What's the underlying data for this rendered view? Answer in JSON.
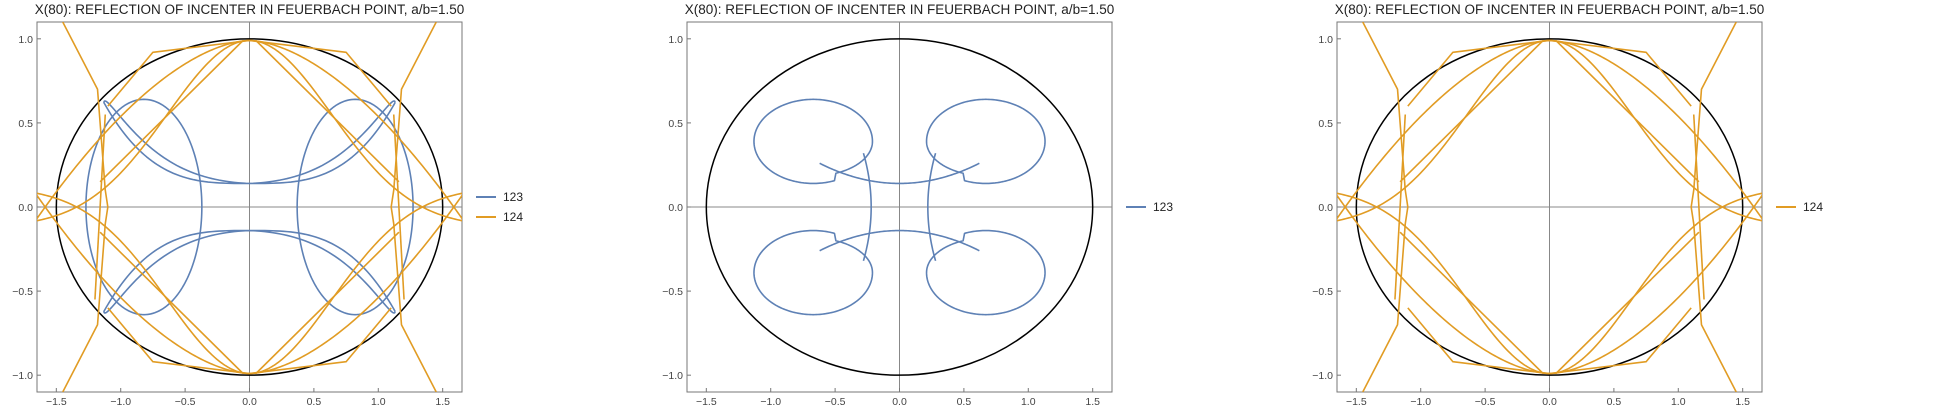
{
  "chart_data": [
    {
      "type": "line",
      "title": "X(80): REFLECTION OF INCENTER IN FEUERBACH POINT, a/b=1.50",
      "xlim": [
        -1.65,
        1.65
      ],
      "ylim": [
        -1.1,
        1.1
      ],
      "xticks": [
        -1.5,
        -1.0,
        -0.5,
        0.0,
        0.5,
        1.0,
        1.5
      ],
      "xtick_labels": [
        "−1.5",
        "−1.0",
        "−0.5",
        "0.0",
        "0.5",
        "1.0",
        "1.5"
      ],
      "yticks": [
        1.0,
        0.5,
        0.0,
        -0.5,
        -1.0
      ],
      "ytick_labels": [
        "1.0",
        "0.5",
        "0.0",
        "−0.5",
        "−1.0"
      ],
      "ellipse": {
        "a": 1.5,
        "b": 1.0,
        "color": "#000000"
      },
      "legend": [
        "123",
        "124"
      ],
      "series": [
        {
          "name": "123",
          "color": "#5E81B5"
        },
        {
          "name": "124",
          "color": "#E19C24"
        }
      ]
    },
    {
      "type": "line",
      "title": "X(80): REFLECTION OF INCENTER IN FEUERBACH POINT, a/b=1.50",
      "xlim": [
        -1.65,
        1.65
      ],
      "ylim": [
        -1.1,
        1.1
      ],
      "xticks": [
        -1.5,
        -1.0,
        -0.5,
        0.0,
        0.5,
        1.0,
        1.5
      ],
      "xtick_labels": [
        "−1.5",
        "−1.0",
        "−0.5",
        "0.0",
        "0.5",
        "1.0",
        "1.5"
      ],
      "yticks": [
        1.0,
        0.5,
        0.0,
        -0.5,
        -1.0
      ],
      "ytick_labels": [
        "1.0",
        "0.5",
        "0.0",
        "−0.5",
        "−1.0"
      ],
      "ellipse": {
        "a": 1.5,
        "b": 1.0,
        "color": "#000000"
      },
      "legend": [
        "123"
      ],
      "series": [
        {
          "name": "123",
          "color": "#5E81B5"
        }
      ]
    },
    {
      "type": "line",
      "title": "X(80): REFLECTION OF INCENTER IN FEUERBACH POINT, a/b=1.50",
      "xlim": [
        -1.65,
        1.65
      ],
      "ylim": [
        -1.1,
        1.1
      ],
      "xticks": [
        -1.5,
        -1.0,
        -0.5,
        0.0,
        0.5,
        1.0,
        1.5
      ],
      "xtick_labels": [
        "−1.5",
        "−1.0",
        "−0.5",
        "0.0",
        "0.5",
        "1.0",
        "1.5"
      ],
      "yticks": [
        1.0,
        0.5,
        0.0,
        -0.5,
        -1.0
      ],
      "ytick_labels": [
        "1.0",
        "0.5",
        "0.0",
        "−0.5",
        "−1.0"
      ],
      "ellipse": {
        "a": 1.5,
        "b": 1.0,
        "color": "#000000"
      },
      "legend": [
        "124"
      ],
      "series": [
        {
          "name": "124",
          "color": "#E19C24"
        }
      ]
    }
  ]
}
